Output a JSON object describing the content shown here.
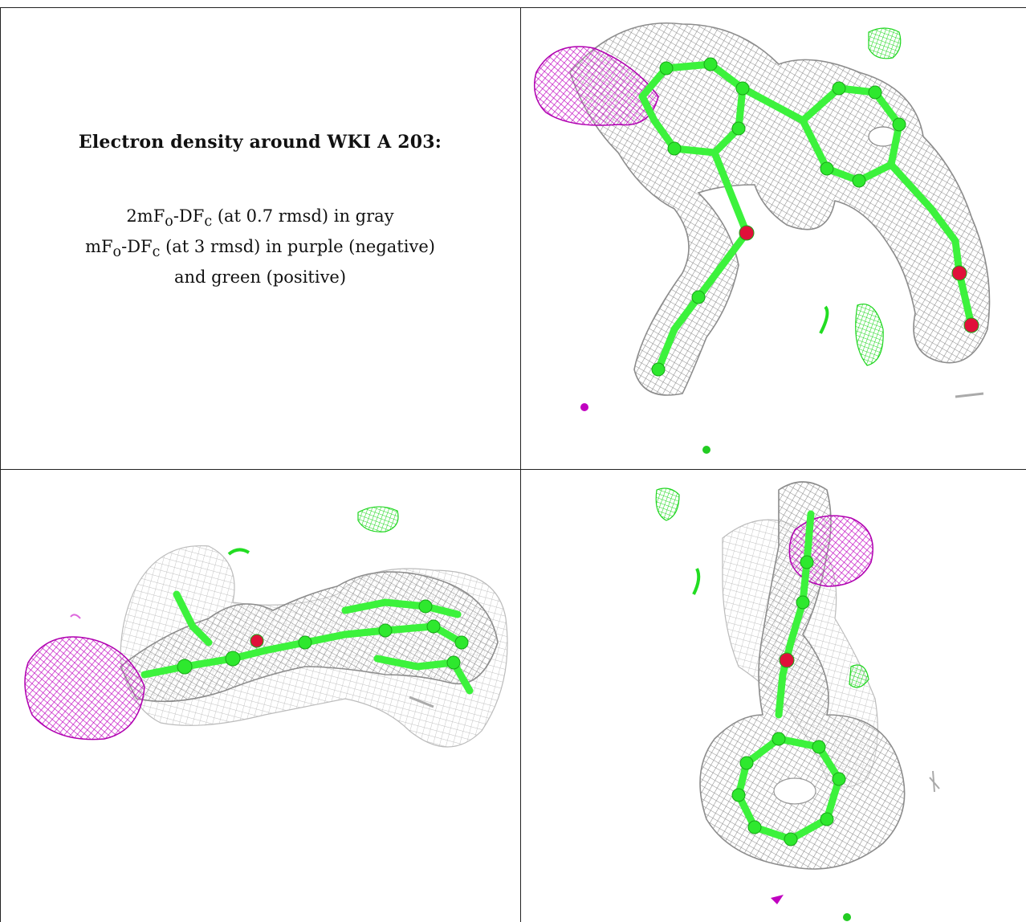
{
  "caption": {
    "title": "Electron density around WKI A 203:",
    "line1_prefix": "2mF",
    "line1_sub_o": "o",
    "line1_mid": "-DF",
    "line1_sub_c": "c",
    "line1_rest": " (at 0.7 rmsd) in gray",
    "line2_prefix": "mF",
    "line2_sub_o": "o",
    "line2_mid": "-DF",
    "line2_sub_c": "c",
    "line2_rest": " (at 3 rmsd) in purple (negative)",
    "line3": "and green (positive)"
  },
  "colors": {
    "map_2fofc": "#9a9a9a",
    "map_fofc_negative": "#c000c0",
    "map_fofc_positive": "#22dd22",
    "ligand_carbon": "#33ee33",
    "ligand_hetero": "#dd1040"
  },
  "panels": [
    {
      "view": "top",
      "content": "ligand-density-view"
    },
    {
      "view": "side",
      "content": "ligand-density-view"
    },
    {
      "view": "end-on",
      "content": "ligand-density-view"
    }
  ]
}
